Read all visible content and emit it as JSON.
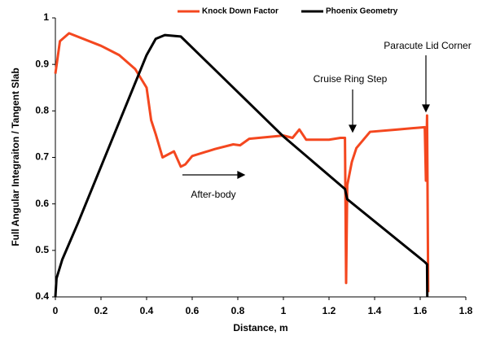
{
  "chart_data": {
    "type": "line",
    "x_label": "Distance, m",
    "y_label": "Full Angular Integraiton / Tangent Slab",
    "xlim": [
      0,
      1.8
    ],
    "xticks": [
      0,
      0.2,
      0.4,
      0.6,
      0.8,
      1,
      1.2,
      1.4,
      1.6,
      1.8
    ],
    "ylim": [
      0.4,
      1
    ],
    "yticks": [
      0.4,
      0.5,
      0.6,
      0.7,
      0.8,
      0.9,
      1
    ],
    "grid": false,
    "legend": "top",
    "annotations": [
      "Cruise Ring Step",
      "Paracute Lid Corner",
      "After-body"
    ],
    "series": [
      {
        "name": "Knock Down Factor",
        "color": "#f4471f",
        "x": [
          0,
          0.02,
          0.06,
          0.2,
          0.28,
          0.35,
          0.4,
          0.42,
          0.44,
          0.47,
          0.52,
          0.55,
          0.57,
          0.6,
          0.7,
          0.78,
          0.81,
          0.85,
          1.0,
          1.04,
          1.07,
          1.1,
          1.2,
          1.25,
          1.27,
          1.275,
          1.28,
          1.3,
          1.32,
          1.38,
          1.5,
          1.62,
          1.625,
          1.63,
          1.635
        ],
        "values": [
          0.88,
          0.95,
          0.967,
          0.94,
          0.92,
          0.89,
          0.85,
          0.78,
          0.75,
          0.7,
          0.713,
          0.68,
          0.685,
          0.703,
          0.718,
          0.728,
          0.726,
          0.74,
          0.747,
          0.742,
          0.76,
          0.738,
          0.738,
          0.742,
          0.742,
          0.43,
          0.64,
          0.69,
          0.72,
          0.755,
          0.76,
          0.765,
          0.65,
          0.79,
          0.41
        ]
      },
      {
        "name": "Phoenix Geometry",
        "color": "#000000",
        "x": [
          0,
          0.005,
          0.03,
          0.1,
          0.2,
          0.3,
          0.4,
          0.44,
          0.48,
          0.55,
          1.0,
          1.27,
          1.28,
          1.62,
          1.63,
          1.631
        ],
        "values": [
          0.4,
          0.44,
          0.48,
          0.56,
          0.68,
          0.8,
          0.92,
          0.955,
          0.963,
          0.96,
          0.745,
          0.632,
          0.61,
          0.475,
          0.47,
          0.4
        ]
      }
    ]
  }
}
